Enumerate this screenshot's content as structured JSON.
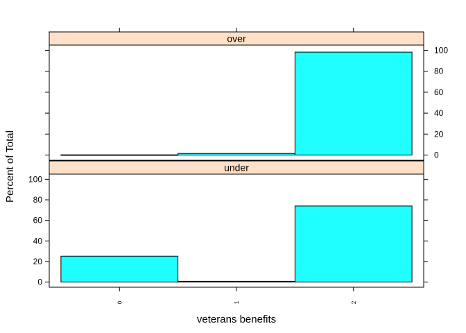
{
  "chart_data": {
    "type": "bar",
    "categories": [
      "0",
      "1",
      "2"
    ],
    "panels": [
      {
        "strip_label": "over",
        "values": [
          0.2,
          1.5,
          98.3
        ]
      },
      {
        "strip_label": "under",
        "values": [
          25.2,
          0.8,
          74.0
        ]
      }
    ],
    "xlabel": "veterans benefits",
    "ylabel": "Percent of Total",
    "ylim": [
      -5,
      105
    ],
    "yticks": [
      0,
      20,
      40,
      60,
      80,
      100
    ],
    "bar_color": "#1FFFFF",
    "strip_color": "#FFE0C8",
    "grid": false
  }
}
